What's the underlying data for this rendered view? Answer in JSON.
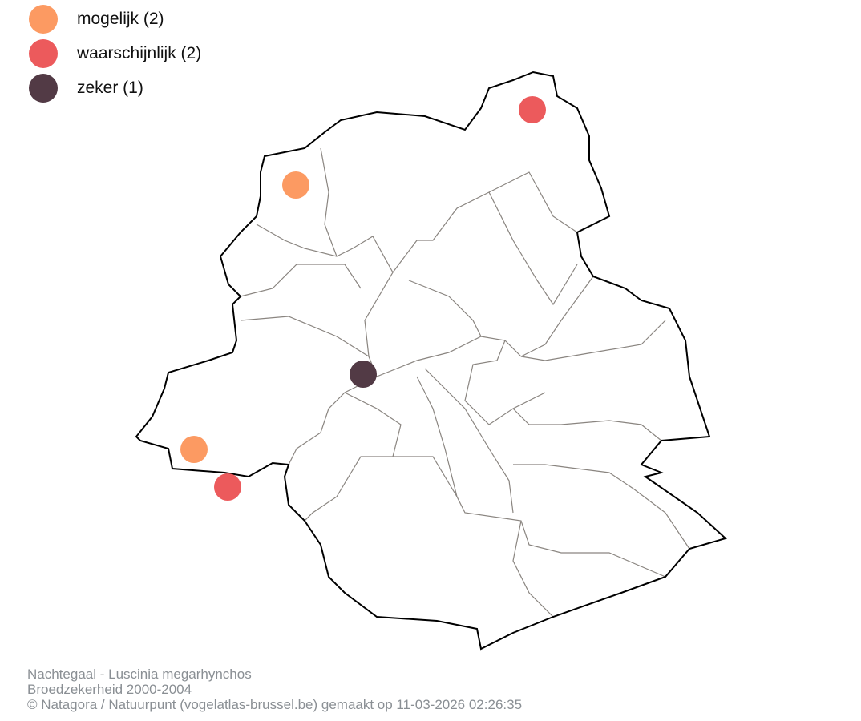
{
  "legend": {
    "items": [
      {
        "label": "mogelijk (2)",
        "color": "#fc9a62"
      },
      {
        "label": "waarschijnlijk (2)",
        "color": "#ec5a5c"
      },
      {
        "label": "zeker (1)",
        "color": "#523a45"
      }
    ]
  },
  "observations": [
    {
      "category": "waarschijnlijk"
    },
    {
      "category": "mogelijk"
    },
    {
      "category": "zeker"
    },
    {
      "category": "mogelijk"
    },
    {
      "category": "waarschijnlijk"
    }
  ],
  "footer": {
    "species": "Nachtegaal - Luscinia megarhynchos",
    "subtitle": "Broedzekerheid 2000-2004",
    "credit": "© Natagora / Natuurpunt (vogelatlas-brussel.be) gemaakt op 11-03-2026 02:26:35"
  },
  "colors": {
    "outline": "#000000",
    "municipal_border": "#8a8580"
  }
}
